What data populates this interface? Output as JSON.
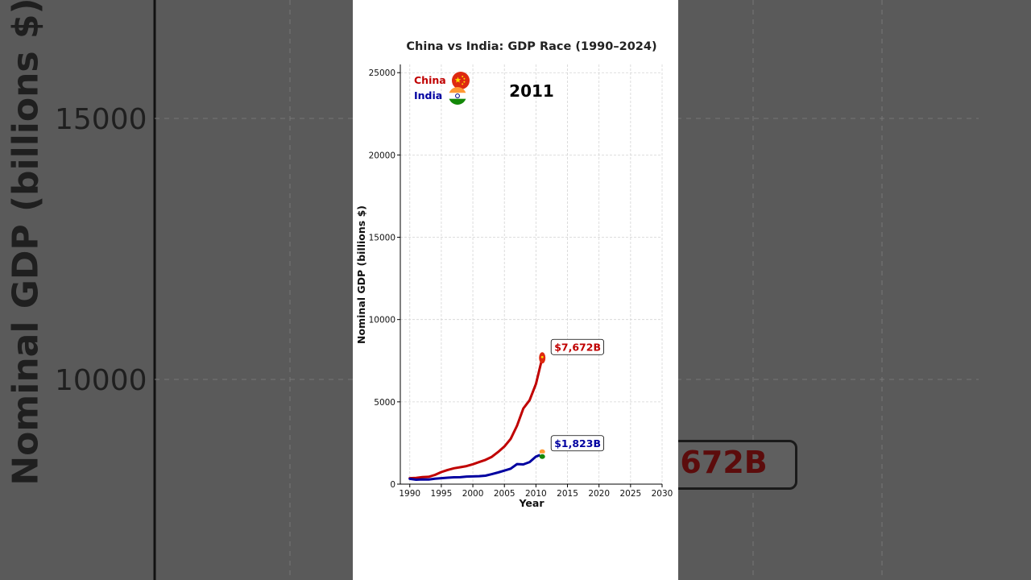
{
  "chart_data": {
    "type": "line",
    "title": "China vs India: GDP Race (1990–2024)",
    "xlabel": "Year",
    "ylabel": "Nominal GDP (billions $)",
    "xlim": [
      1988.5,
      2030
    ],
    "ylim": [
      0,
      25500
    ],
    "x_ticks": [
      1990,
      1995,
      2000,
      2005,
      2010,
      2015,
      2020,
      2025,
      2030
    ],
    "y_ticks": [
      0,
      5000,
      10000,
      15000,
      20000,
      25000
    ],
    "grid": true,
    "legend_position": "top-left",
    "year_label": "2011",
    "series": [
      {
        "name": "China",
        "color": "#c00000",
        "flag_icon": "china-flag-icon",
        "value_label": "$7,672B",
        "points": [
          [
            1990,
            361
          ],
          [
            1991,
            383
          ],
          [
            1992,
            427
          ],
          [
            1993,
            445
          ],
          [
            1994,
            564
          ],
          [
            1995,
            734
          ],
          [
            1996,
            863
          ],
          [
            1997,
            962
          ],
          [
            1998,
            1029
          ],
          [
            1999,
            1094
          ],
          [
            2000,
            1211
          ],
          [
            2001,
            1339
          ],
          [
            2002,
            1471
          ],
          [
            2003,
            1660
          ],
          [
            2004,
            1955
          ],
          [
            2005,
            2286
          ],
          [
            2006,
            2752
          ],
          [
            2007,
            3550
          ],
          [
            2008,
            4594
          ],
          [
            2009,
            5102
          ],
          [
            2010,
            6087
          ],
          [
            2011,
            7672
          ]
        ]
      },
      {
        "name": "India",
        "color": "#0000a0",
        "flag_icon": "india-flag-icon",
        "value_label": "$1,823B",
        "points": [
          [
            1990,
            321
          ],
          [
            1991,
            270
          ],
          [
            1992,
            288
          ],
          [
            1993,
            279
          ],
          [
            1994,
            327
          ],
          [
            1995,
            360
          ],
          [
            1996,
            392
          ],
          [
            1997,
            415
          ],
          [
            1998,
            421
          ],
          [
            1999,
            458
          ],
          [
            2000,
            468
          ],
          [
            2001,
            485
          ],
          [
            2002,
            515
          ],
          [
            2003,
            607
          ],
          [
            2004,
            709
          ],
          [
            2005,
            820
          ],
          [
            2006,
            940
          ],
          [
            2007,
            1217
          ],
          [
            2008,
            1199
          ],
          [
            2009,
            1342
          ],
          [
            2010,
            1676
          ],
          [
            2011,
            1823
          ]
        ]
      }
    ]
  },
  "background": {
    "ylabel": "Nominal GDP (billions $)",
    "tick_upper": "15000",
    "tick_lower": "10000",
    "value_fragment": ",672B"
  }
}
